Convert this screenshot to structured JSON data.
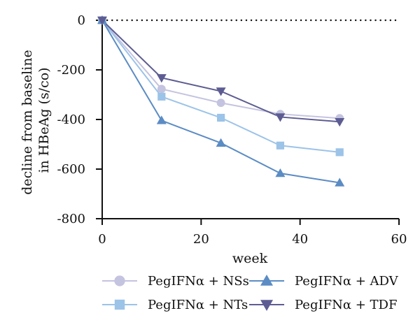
{
  "chart_data": {
    "type": "line",
    "title": "",
    "xlabel": "week",
    "ylabel": [
      "decline from baseline",
      "in HBeAg (s/co)"
    ],
    "xlim": [
      0,
      60
    ],
    "ylim": [
      -800,
      0
    ],
    "xticks": [
      0,
      20,
      40,
      60
    ],
    "yticks": [
      0,
      -200,
      -400,
      -600,
      -800
    ],
    "reference_line": {
      "y": 0,
      "style": "dotted"
    },
    "grid": false,
    "legend_position": "bottom",
    "series": [
      {
        "name": "PegIFNα + NSs",
        "marker": "circle",
        "color": "#c4c3e0",
        "x": [
          0,
          12,
          24,
          36,
          48
        ],
        "y": [
          0,
          -277,
          -333,
          -378,
          -395
        ]
      },
      {
        "name": "PegIFNα + NTs",
        "marker": "square",
        "color": "#9cc3e8",
        "x": [
          0,
          12,
          24,
          36,
          48
        ],
        "y": [
          0,
          -308,
          -393,
          -505,
          -532
        ]
      },
      {
        "name": "PegIFNα + ADV",
        "marker": "triangle-up",
        "color": "#5b8cc4",
        "x": [
          0,
          12,
          24,
          36,
          48
        ],
        "y": [
          0,
          -404,
          -495,
          -617,
          -655
        ]
      },
      {
        "name": "PegIFNα + TDF",
        "marker": "triangle-down",
        "color": "#5d5c92",
        "x": [
          0,
          12,
          24,
          36,
          48
        ],
        "y": [
          0,
          -232,
          -286,
          -390,
          -409
        ]
      }
    ]
  }
}
